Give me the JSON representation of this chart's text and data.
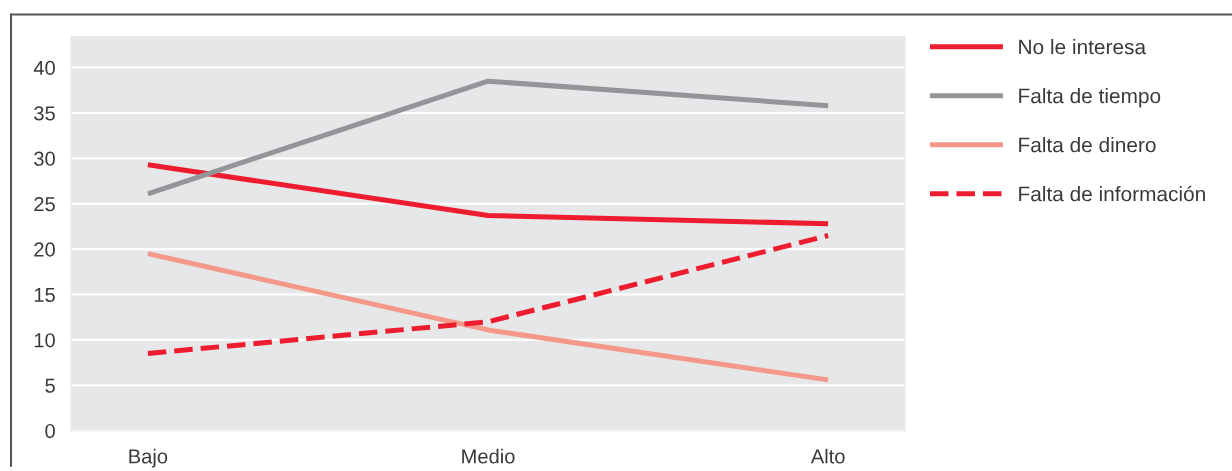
{
  "chart_data": {
    "type": "line",
    "categories": [
      "Bajo",
      "Medio",
      "Alto"
    ],
    "series": [
      {
        "name": "No le interesa",
        "color": "#ed1c2e",
        "values": [
          29.3,
          23.7,
          22.8
        ]
      },
      {
        "name": "Falta de tiempo",
        "color": "#939598",
        "values": [
          26.1,
          38.5,
          35.8
        ]
      },
      {
        "name": "Falta de dinero",
        "color": "#f4998a",
        "values": [
          19.5,
          11.1,
          5.6
        ]
      },
      {
        "name": "Falta de información",
        "color": "#ed1c2e",
        "values": [
          8.5,
          12.0,
          21.5
        ],
        "line_style": "dashed"
      }
    ],
    "ylim": [
      0,
      43.4
    ],
    "yticks": [
      0,
      5,
      10,
      15,
      20,
      25,
      30,
      35,
      40
    ],
    "grid": "y",
    "legend": "top right"
  }
}
